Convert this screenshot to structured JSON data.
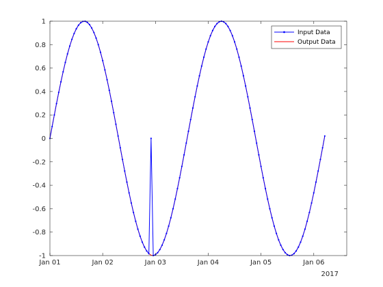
{
  "chart_data": {
    "type": "line",
    "x_type": "datetime",
    "xlim": [
      "2017-01-01 00:00",
      "2017-01-06 15:00"
    ],
    "ylim": [
      -1,
      1
    ],
    "xticks": [
      "2017-01-01",
      "2017-01-02",
      "2017-01-03",
      "2017-01-04",
      "2017-01-05",
      "2017-01-06"
    ],
    "xtick_labels": [
      "Jan 01",
      "Jan 02",
      "Jan 03",
      "Jan 04",
      "Jan 05",
      "Jan 06"
    ],
    "x_secondary_label": "2017",
    "yticks": [
      -1,
      -0.8,
      -0.6,
      -0.4,
      -0.2,
      0,
      0.2,
      0.4,
      0.6,
      0.8,
      1
    ],
    "ytick_labels": [
      "-1",
      "-0.8",
      "-0.6",
      "-0.4",
      "-0.2",
      "0",
      "0.2",
      "0.4",
      "0.6",
      "0.8",
      "1"
    ],
    "grid": false,
    "legend_location": "top-right",
    "description_of_data": "Sine of period 2.6 days sampled every 1 hour (0 to 125 h); Input Data contains a single spike to 0 at the sample nearest 2017-01-02 22:00.",
    "series": [
      {
        "name": "Input Data",
        "color": "#0000ff",
        "marker": "dot",
        "sample_step_hours": 1,
        "period_days": 2.6,
        "amplitude": 1,
        "start": "2017-01-01 00:00",
        "end": "2017-01-06 05:00",
        "anomalies": [
          {
            "x": "2017-01-02 22:00",
            "y": 0
          }
        ]
      },
      {
        "name": "Output Data",
        "color": "#ff0000",
        "marker": "none",
        "sample_step_hours": 1,
        "period_days": 2.6,
        "amplitude": 1,
        "start": "2017-01-01 00:00",
        "end": "2017-01-06 05:00",
        "anomalies": []
      }
    ]
  }
}
